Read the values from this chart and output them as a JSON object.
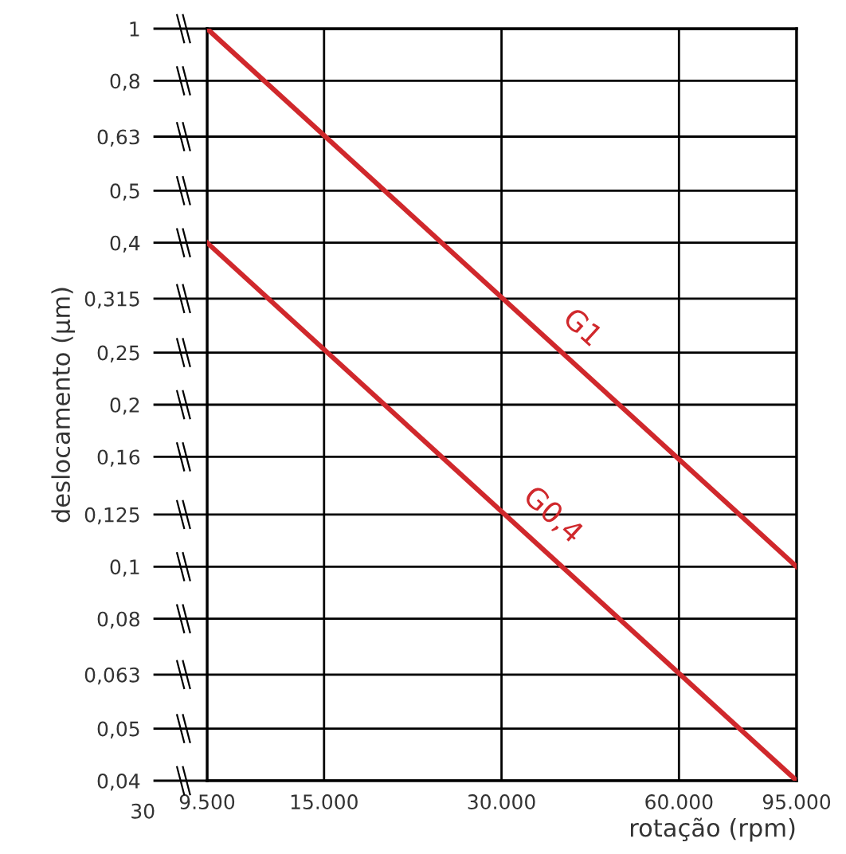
{
  "chart_data": {
    "type": "line",
    "xlabel": "rotação (rpm)",
    "ylabel": "deslocamento (µm)",
    "log": "xy",
    "series": [
      {
        "name": "G1",
        "color": "#d0282c",
        "values": [
          1,
          0.1
        ]
      },
      {
        "name": "G0,4",
        "color": "#d0282c",
        "values": [
          0.4,
          0.04
        ]
      }
    ],
    "x": [
      9500,
      95000
    ],
    "xlim": [
      9500,
      95000
    ],
    "xticks": [
      {
        "value": 9500,
        "label": "9.500"
      },
      {
        "value": 15000,
        "label": "15.000"
      },
      {
        "value": 30000,
        "label": "30.000"
      },
      {
        "value": 60000,
        "label": "60.000"
      },
      {
        "value": 95000,
        "label": "95.000"
      }
    ],
    "ylim": [
      0.04,
      1
    ],
    "yticks": [
      {
        "value": 1,
        "label": "1"
      },
      {
        "value": 0.8,
        "label": "0,8"
      },
      {
        "value": 0.63,
        "label": "0,63"
      },
      {
        "value": 0.5,
        "label": "0,5"
      },
      {
        "value": 0.4,
        "label": "0,4"
      },
      {
        "value": 0.315,
        "label": "0,315"
      },
      {
        "value": 0.25,
        "label": "0,25"
      },
      {
        "value": 0.2,
        "label": "0,2"
      },
      {
        "value": 0.16,
        "label": "0,16"
      },
      {
        "value": 0.125,
        "label": "0,125"
      },
      {
        "value": 0.1,
        "label": "0,1"
      },
      {
        "value": 0.08,
        "label": "0,08"
      },
      {
        "value": 0.063,
        "label": "0,063"
      },
      {
        "value": 0.05,
        "label": "0,05"
      },
      {
        "value": 0.04,
        "label": "0,04"
      }
    ],
    "grid": true,
    "marker": "none",
    "line_style": "solid",
    "annotations": [
      "30"
    ]
  }
}
